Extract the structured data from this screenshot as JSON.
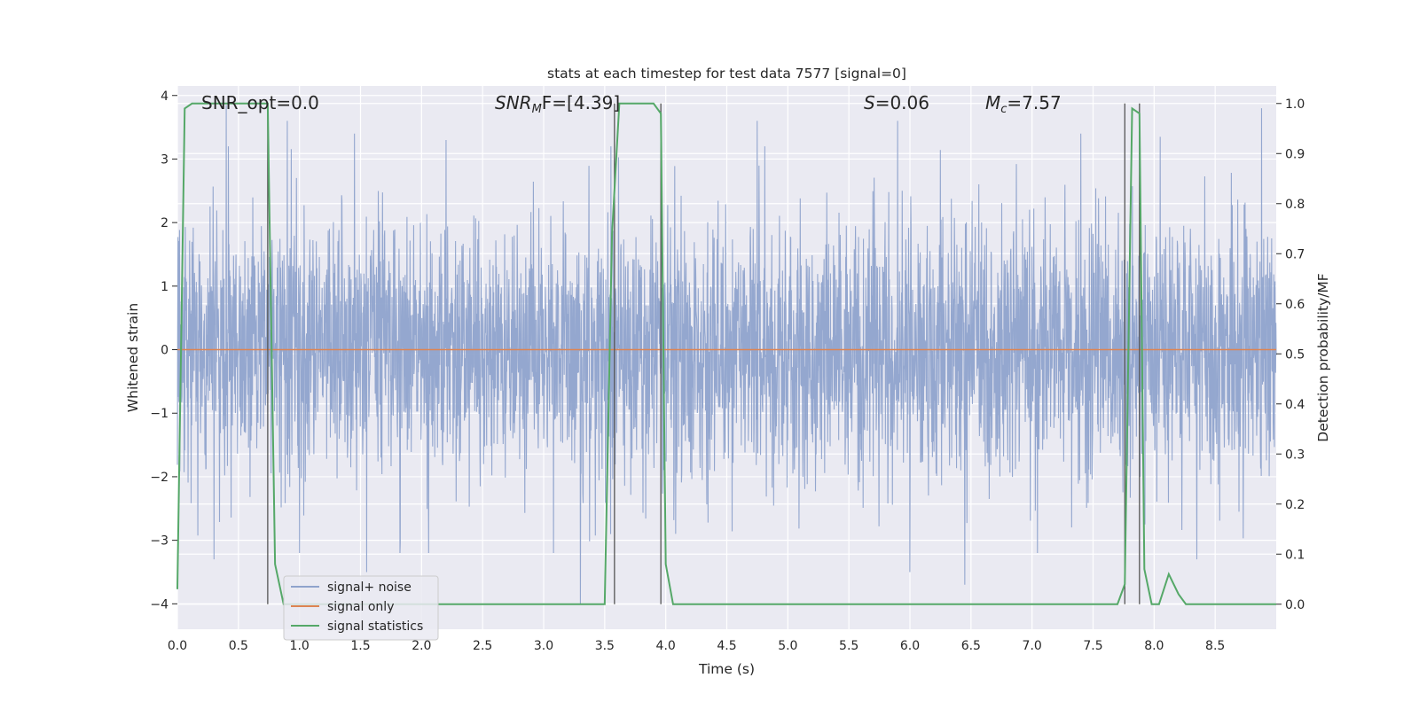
{
  "chart_data": {
    "type": "line",
    "title": "stats at each timestep for test data 7577 [signal=0]",
    "xlabel": "Time (s)",
    "ylabel": "Whitened strain",
    "y2label": "Detection probability/MF",
    "xlim": [
      0,
      9.0
    ],
    "ylim": [
      -4.4,
      4.15
    ],
    "y2lim": [
      -0.05,
      1.035
    ],
    "grid": true,
    "legend_position": "bottom-left",
    "x_ticks": [
      "0.0",
      "0.5",
      "1.0",
      "1.5",
      "2.0",
      "2.5",
      "3.0",
      "3.5",
      "4.0",
      "4.5",
      "5.0",
      "5.5",
      "6.0",
      "6.5",
      "7.0",
      "7.5",
      "8.0",
      "8.5"
    ],
    "y_ticks": [
      "4",
      "3",
      "2",
      "1",
      "0",
      "−1",
      "−2",
      "−3",
      "−4"
    ],
    "y2_ticks": [
      "1.0",
      "0.9",
      "0.8",
      "0.7",
      "0.6",
      "0.5",
      "0.4",
      "0.3",
      "0.2",
      "0.1",
      "0.0"
    ],
    "annotations": {
      "snr_opt": "SNR_opt=0.0",
      "snr_mf_main": "SNR",
      "snr_mf_sub": "M",
      "snr_mf_rest": "F=[4.39]",
      "s_italic": "S",
      "s_rest": "=0.06",
      "mc_main": "M",
      "mc_sub": "c",
      "mc_rest": "=7.57"
    },
    "series": [
      {
        "name": "signal+ noise",
        "color": "#8fa3cc",
        "note": "whitened strain noise, roughly Gaussian, spikes up to about ±3.9",
        "x_range": [
          0,
          9.0
        ],
        "spikes": [
          [
            0.3,
            -3.3
          ],
          [
            0.4,
            3.85
          ],
          [
            0.9,
            3.6
          ],
          [
            1.0,
            -3.2
          ],
          [
            1.45,
            3.4
          ],
          [
            1.55,
            -3.5
          ],
          [
            2.2,
            3.3
          ],
          [
            3.3,
            -4.0
          ],
          [
            3.55,
            3.2
          ],
          [
            4.75,
            3.6
          ],
          [
            5.9,
            3.6
          ],
          [
            6.0,
            -3.5
          ],
          [
            6.45,
            -3.7
          ],
          [
            7.4,
            3.4
          ],
          [
            8.05,
            3.35
          ],
          [
            8.35,
            -3.3
          ],
          [
            8.88,
            3.8
          ]
        ]
      },
      {
        "name": "signal only",
        "color": "#dd8452",
        "x": [
          0,
          9.0
        ],
        "y": [
          0,
          0
        ]
      },
      {
        "name": "signal statistics",
        "color": "#55a868",
        "axis": "right",
        "x": [
          0,
          0.06,
          0.12,
          0.2,
          0.7,
          0.74,
          0.8,
          0.87,
          3.5,
          3.56,
          3.62,
          3.68,
          3.9,
          3.96,
          4.0,
          4.06,
          7.7,
          7.76,
          7.82,
          7.88,
          7.92,
          7.98,
          8.04,
          8.12,
          8.2,
          8.26,
          9.0
        ],
        "y": [
          0.03,
          0.99,
          1.0,
          1.0,
          1.0,
          1.0,
          0.08,
          0.0,
          0.0,
          0.74,
          1.0,
          1.0,
          1.0,
          0.98,
          0.08,
          0.0,
          0.0,
          0.04,
          0.99,
          0.98,
          0.07,
          0.0,
          0.0,
          0.06,
          0.02,
          0.0,
          0.0
        ]
      }
    ],
    "vertical_markers": [
      0.74,
      3.58,
      3.96,
      7.76,
      7.88
    ]
  }
}
